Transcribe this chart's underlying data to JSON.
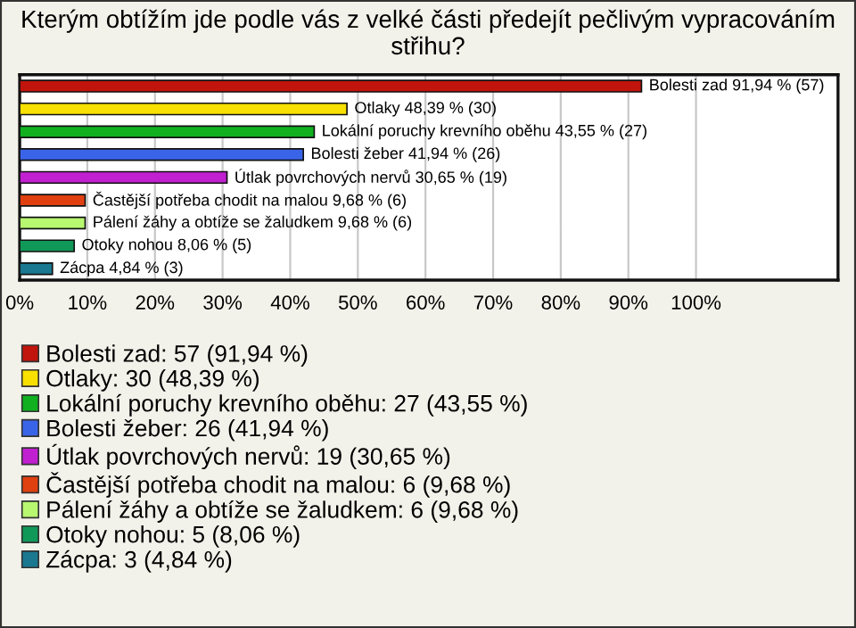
{
  "chart_data": {
    "type": "bar",
    "orientation": "horizontal",
    "title": "Kterým obtížím jde podle vás z velké části předejít pečlivým vypracováním střihu?",
    "categories": [
      null,
      null,
      null,
      null,
      null,
      null,
      null,
      null,
      null
    ],
    "series": [
      {
        "name": "Bolesti zad: 57 (91,94 %)",
        "color": "#c0140c",
        "values": [
          91.94,
          null,
          null,
          null,
          null,
          null,
          null,
          null,
          null
        ],
        "value_labels": [
          "Bolesti zad 91,94 % (57)",
          null,
          null,
          null,
          null,
          null,
          null,
          null,
          null
        ]
      },
      {
        "name": "Otlaky: 30 (48,39 %)",
        "color": "#f8e000",
        "values": [
          null,
          48.39,
          null,
          null,
          null,
          null,
          null,
          null,
          null
        ],
        "value_labels": [
          null,
          "Otlaky 48,39 % (30)",
          null,
          null,
          null,
          null,
          null,
          null,
          null
        ]
      },
      {
        "name": "Lokální poruchy krevního oběhu: 27 (43,55 %)",
        "color": "#10b020",
        "values": [
          null,
          null,
          43.55,
          null,
          null,
          null,
          null,
          null,
          null
        ],
        "value_labels": [
          null,
          null,
          "Lokální poruchy krevního oběhu 43,55 % (27)",
          null,
          null,
          null,
          null,
          null,
          null
        ]
      },
      {
        "name": "Bolesti žeber: 26 (41,94 %)",
        "color": "#3a64e8",
        "values": [
          null,
          null,
          null,
          41.94,
          null,
          null,
          null,
          null,
          null
        ],
        "value_labels": [
          null,
          null,
          null,
          "Bolesti žeber 41,94 % (26)",
          null,
          null,
          null,
          null,
          null
        ]
      },
      {
        "name": "Útlak povrchových nervů: 19 (30,65 %)",
        "color": "#c020d0",
        "values": [
          null,
          null,
          null,
          null,
          30.65,
          null,
          null,
          null,
          null
        ],
        "value_labels": [
          null,
          null,
          null,
          null,
          "Útlak povrchových nervů 30,65 % (19)",
          null,
          null,
          null,
          null
        ]
      },
      {
        "name": "Častější potřeba chodit na malou: 6 (9,68 %)",
        "color": "#e04010",
        "values": [
          null,
          null,
          null,
          null,
          null,
          9.68,
          null,
          null,
          null
        ],
        "value_labels": [
          null,
          null,
          null,
          null,
          null,
          "Častější potřeba chodit na malou 9,68 % (6)",
          null,
          null,
          null
        ]
      },
      {
        "name": "Pálení žáhy a obtíže se žaludkem: 6 (9,68 %)",
        "color": "#b8f870",
        "values": [
          null,
          null,
          null,
          null,
          null,
          null,
          9.68,
          null,
          null
        ],
        "value_labels": [
          null,
          null,
          null,
          null,
          null,
          null,
          "Pálení žáhy a obtíže se žaludkem 9,68 % (6)",
          null,
          null
        ]
      },
      {
        "name": "Otoky nohou: 5 (8,06 %)",
        "color": "#109858",
        "values": [
          null,
          null,
          null,
          null,
          null,
          null,
          null,
          8.06,
          null
        ],
        "value_labels": [
          null,
          null,
          null,
          null,
          null,
          null,
          null,
          "Otoky nohou 8,06 % (5)",
          null
        ]
      },
      {
        "name": "Zácpa: 3 (4,84 %)",
        "color": "#1a7890",
        "values": [
          null,
          null,
          null,
          null,
          null,
          null,
          null,
          null,
          4.84
        ],
        "value_labels": [
          null,
          null,
          null,
          null,
          null,
          null,
          null,
          null,
          "Zácpa 4,84 % (3)"
        ]
      }
    ],
    "xlim": [
      0,
      121
    ],
    "xticks": [
      {
        "value": 0,
        "label": "0%"
      },
      {
        "value": 10,
        "label": "10%"
      },
      {
        "value": 20,
        "label": "20%"
      },
      {
        "value": 30,
        "label": "30%"
      },
      {
        "value": 40,
        "label": "40%"
      },
      {
        "value": 50,
        "label": "50%"
      },
      {
        "value": 60,
        "label": "60%"
      },
      {
        "value": 70,
        "label": "70%"
      },
      {
        "value": 80,
        "label": "80%"
      },
      {
        "value": 90,
        "label": "90%"
      },
      {
        "value": 100,
        "label": "100%"
      }
    ],
    "grid": "x",
    "legend": "bottom left",
    "tick_labels": "x"
  }
}
